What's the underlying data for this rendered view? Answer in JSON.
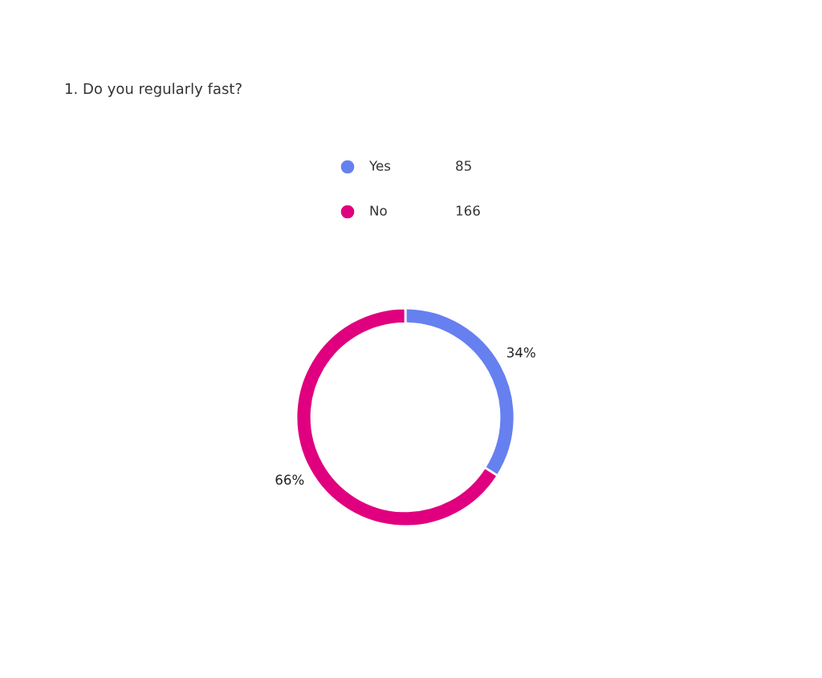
{
  "chart_data": {
    "type": "donut",
    "title": "1. Do you regularly fast?",
    "categories": [
      "Yes",
      "No"
    ],
    "values": [
      34,
      66
    ],
    "annotations": [
      "85",
      "166"
    ],
    "colors": [
      "#6680f0",
      "#e0007f"
    ],
    "value_labels": [
      "34%",
      "66%"
    ],
    "legend": "top"
  }
}
